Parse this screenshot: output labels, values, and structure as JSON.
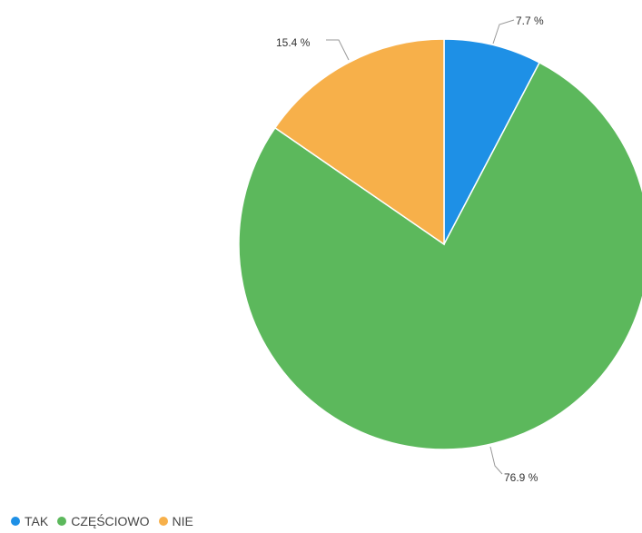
{
  "chart_data": {
    "type": "pie",
    "categories": [
      "TAK",
      "CZĘŚCIOWO",
      "NIE"
    ],
    "values": [
      7.7,
      76.9,
      15.4
    ],
    "labels": [
      "7.7 %",
      "76.9 %",
      "15.4 %"
    ],
    "colors": [
      "#1e90e6",
      "#5cb85c",
      "#f7b04a"
    ],
    "legend_position": "bottom-left",
    "start_angle_deg": 0,
    "direction": "clockwise"
  },
  "legend": {
    "items": [
      {
        "label": "TAK",
        "color": "#1e90e6"
      },
      {
        "label": "CZĘŚCIOWO",
        "color": "#5cb85c"
      },
      {
        "label": "NIE",
        "color": "#f7b04a"
      }
    ]
  }
}
